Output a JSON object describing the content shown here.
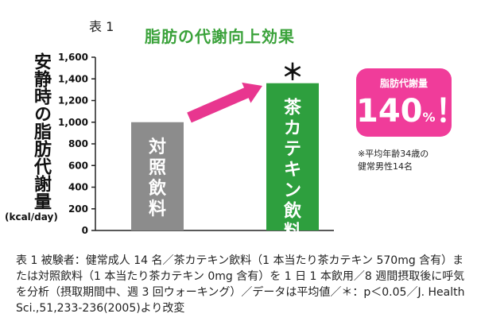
{
  "table_label": "表 1",
  "title": "脂肪の代謝向上効果",
  "chart_data": {
    "type": "bar",
    "categories": [
      "対照飲料",
      "茶カテキン飲料"
    ],
    "values": [
      1000,
      1360
    ],
    "ylabel": "安静時の脂肪代謝量",
    "yunit": "(kcal/day)",
    "ylim": [
      0,
      1600
    ],
    "yticks": [
      "0",
      "200",
      "400",
      "600",
      "800",
      "1,000",
      "1,200",
      "1,400",
      "1,600"
    ],
    "significance_marker": "＊",
    "colors": {
      "control": "#8c8c8c",
      "catechin": "#2e9f3e",
      "arrow": "#e8368f",
      "callout": "#f03c9a"
    }
  },
  "callout": {
    "label": "脂肪代謝量",
    "value": "140",
    "unit": "%",
    "mark": "！"
  },
  "note_lines": [
    "※平均年齢34歳の",
    "健常男性14名"
  ],
  "caption": "表 1 被験者：健常成人 14 名／茶カテキン飲料（1 本当たり茶カテキン 570mg 含有）または対照飲料（1 本当たり茶カテキン 0mg 含有）を 1 日 1 本飲用／8 週間摂取後に呼気を分析（摂取期間中、週 3 回ウォーキング）／データは平均値／＊：p＜0.05／J. Health Sci.,51,233-236(2005)より改変"
}
